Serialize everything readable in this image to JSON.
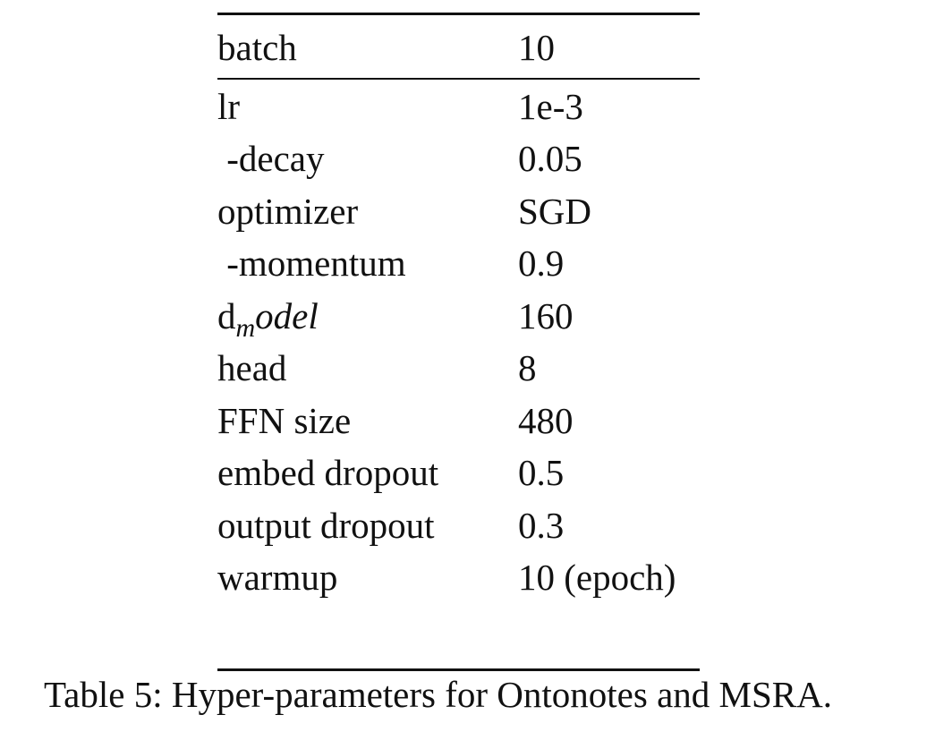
{
  "table": {
    "header": {
      "key": "batch",
      "value": "10"
    },
    "rows": [
      {
        "key": "lr",
        "value": "1e-3"
      },
      {
        "key": " -decay",
        "value": "0.05"
      },
      {
        "key": "optimizer",
        "value": "SGD"
      },
      {
        "key": " -momentum",
        "value": "0.9"
      },
      {
        "key_prefix": "d",
        "key_sub": "m",
        "key_italic": "odel",
        "value": "160"
      },
      {
        "key": "head",
        "value": "8"
      },
      {
        "key": "FFN size",
        "value": "480"
      },
      {
        "key": "embed dropout",
        "value": "0.5"
      },
      {
        "key": "output dropout",
        "value": "0.3"
      },
      {
        "key": "warmup",
        "value": "10 (epoch)"
      }
    ]
  },
  "caption": "Table 5: Hyper-parameters for Ontonotes and MSRA."
}
